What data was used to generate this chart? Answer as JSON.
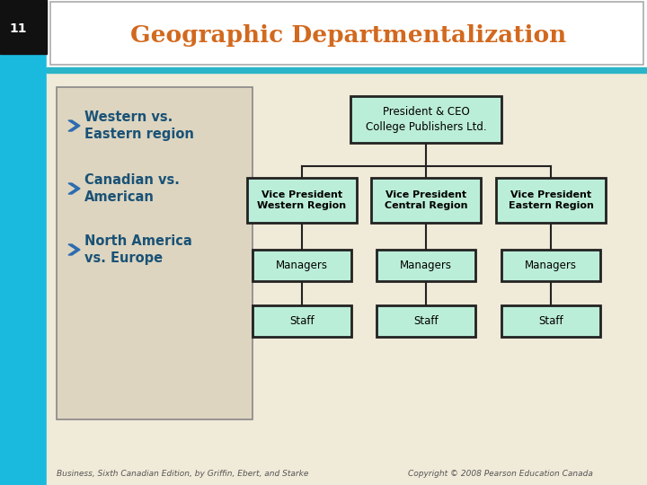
{
  "title": "Geographic Departmentalization",
  "slide_number": "11",
  "title_color": "#D2691E",
  "slide_bg": "#F0EAD8",
  "left_panel_bg": "#DDD5C0",
  "left_panel_border": "#888888",
  "bullet_color": "#2B6CB0",
  "bullet_text_color": "#1A5276",
  "bullets": [
    "Western vs.\nEastern region",
    "Canadian vs.\nAmerican",
    "North America\nvs. Europe"
  ],
  "org_box_bg": "#BBEED8",
  "org_box_border": "#222222",
  "org_text_color": "#000000",
  "top_box": "President & CEO\nCollege Publishers Ltd.",
  "vp_boxes": [
    "Vice President\nWestern Region",
    "Vice President\nCentral Region",
    "Vice President\nEastern Region"
  ],
  "level3_boxes": [
    "Managers",
    "Managers",
    "Managers"
  ],
  "level4_boxes": [
    "Staff",
    "Staff",
    "Staff"
  ],
  "footer_left": "Business, Sixth Canadian Edition, by Griffin, Ebert, and Starke",
  "footer_right": "Copyright © 2008 Pearson Education Canada",
  "footer_color": "#555555",
  "sidebar_top_color": "#111111",
  "sidebar_blue_color": "#1ABADF",
  "teal_bar_color": "#2AB5C8",
  "title_border_color": "#AAAAAA",
  "white": "#FFFFFF"
}
